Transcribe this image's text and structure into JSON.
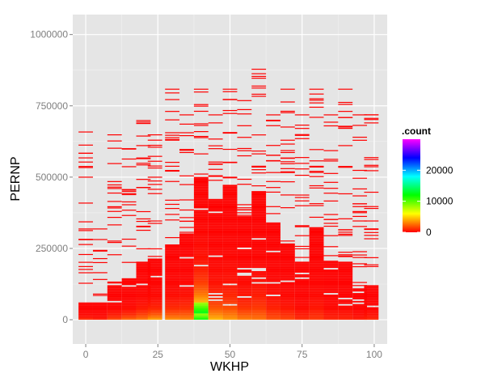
{
  "chart_data": {
    "type": "heatmap",
    "xlabel": "WKHP",
    "ylabel": "PERNP",
    "xlim": [
      -4.5,
      104.5
    ],
    "ylim": [
      -85000,
      1070000
    ],
    "x_ticks": [
      0,
      25,
      50,
      75,
      100
    ],
    "x_tick_labels": [
      "0",
      "25",
      "50",
      "75",
      "100"
    ],
    "y_ticks": [
      0,
      250000,
      500000,
      750000,
      1000000
    ],
    "y_tick_labels": [
      "0",
      "250000",
      "500000",
      "750000",
      "1000000"
    ],
    "grid": true,
    "fill_scale": {
      "title": ".count",
      "range": [
        0,
        30000
      ],
      "breaks": [
        0,
        10000,
        20000
      ],
      "break_labels": [
        "0",
        "10000",
        "20000"
      ],
      "colors": [
        "#ff0000",
        "#ffff00",
        "#00ff00",
        "#00ffff",
        "#0000ff",
        "#ff00ff"
      ]
    },
    "legend_position": "right",
    "description_columns": [
      {
        "x": 0,
        "max": 660000,
        "dense_max": 60000,
        "peak": 900
      },
      {
        "x": 5,
        "max": 320000,
        "dense_max": 60000,
        "peak": 600
      },
      {
        "x": 10,
        "max": 650000,
        "dense_max": 120000,
        "peak": 1500
      },
      {
        "x": 15,
        "max": 600000,
        "dense_max": 140000,
        "peak": 2200
      },
      {
        "x": 20,
        "max": 700000,
        "dense_max": 200000,
        "peak": 2600
      },
      {
        "x": 24,
        "max": 650000,
        "dense_max": 210000,
        "peak": 3600
      },
      {
        "x": 30,
        "max": 810000,
        "dense_max": 260000,
        "peak": 3200
      },
      {
        "x": 35,
        "max": 720000,
        "dense_max": 300000,
        "peak": 3000
      },
      {
        "x": 40,
        "max": 810000,
        "dense_max": 500000,
        "peak": 11500
      },
      {
        "x": 45,
        "max": 720000,
        "dense_max": 420000,
        "peak": 4200
      },
      {
        "x": 50,
        "max": 810000,
        "dense_max": 470000,
        "peak": 3500
      },
      {
        "x": 55,
        "max": 770000,
        "dense_max": 360000,
        "peak": 2800
      },
      {
        "x": 60,
        "max": 880000,
        "dense_max": 450000,
        "peak": 2600
      },
      {
        "x": 65,
        "max": 720000,
        "dense_max": 340000,
        "peak": 1800
      },
      {
        "x": 70,
        "max": 810000,
        "dense_max": 260000,
        "peak": 1500
      },
      {
        "x": 75,
        "max": 720000,
        "dense_max": 200000,
        "peak": 900
      },
      {
        "x": 80,
        "max": 810000,
        "dense_max": 320000,
        "peak": 1200
      },
      {
        "x": 85,
        "max": 720000,
        "dense_max": 200000,
        "peak": 700
      },
      {
        "x": 90,
        "max": 810000,
        "dense_max": 200000,
        "peak": 700
      },
      {
        "x": 95,
        "max": 720000,
        "dense_max": 110000,
        "peak": 500
      },
      {
        "x": 99,
        "max": 720000,
        "dense_max": 120000,
        "peak": 800
      }
    ]
  }
}
